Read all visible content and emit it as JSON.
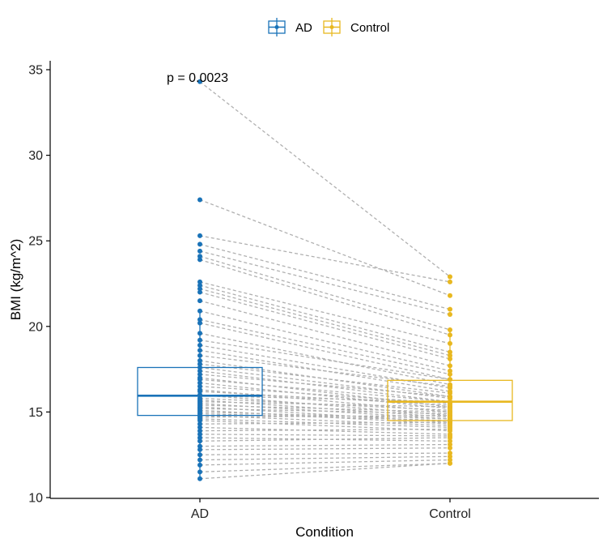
{
  "chart_data": {
    "type": "box_paired",
    "title": "",
    "xlabel": "Condition",
    "ylabel": "BMI (kg/m^2)",
    "ylim": [
      10,
      35.5
    ],
    "yticks": [
      10,
      15,
      20,
      25,
      30,
      35
    ],
    "categories": [
      "AD",
      "Control"
    ],
    "colors": {
      "AD": "#1a73b8",
      "Control": "#e8b820",
      "pair_line": "#b0b0b0"
    },
    "legend": {
      "position": "top",
      "entries": [
        "AD",
        "Control"
      ]
    },
    "annotation": "p = 0.0023",
    "boxes": [
      {
        "group": "AD",
        "q1": 14.8,
        "median": 15.95,
        "q3": 17.6,
        "whisker_low": 11.1,
        "whisker_high": 20.9
      },
      {
        "group": "Control",
        "q1": 14.5,
        "median": 15.6,
        "q3": 16.85,
        "whisker_low": 12.0,
        "whisker_high": 19.9
      }
    ],
    "pairs": [
      [
        34.3,
        22.9
      ],
      [
        27.4,
        21.8
      ],
      [
        25.3,
        22.6
      ],
      [
        24.8,
        21.0
      ],
      [
        24.4,
        20.7
      ],
      [
        24.1,
        19.8
      ],
      [
        23.9,
        19.5
      ],
      [
        22.6,
        19.0
      ],
      [
        22.4,
        18.5
      ],
      [
        22.2,
        18.3
      ],
      [
        22.0,
        18.1
      ],
      [
        21.5,
        17.7
      ],
      [
        20.9,
        17.4
      ],
      [
        20.4,
        17.2
      ],
      [
        20.2,
        16.9
      ],
      [
        19.6,
        16.6
      ],
      [
        19.2,
        16.9
      ],
      [
        18.9,
        16.4
      ],
      [
        18.6,
        16.2
      ],
      [
        18.3,
        16.5
      ],
      [
        18.0,
        15.9
      ],
      [
        17.8,
        16.1
      ],
      [
        17.6,
        15.8
      ],
      [
        17.4,
        15.6
      ],
      [
        17.2,
        15.9
      ],
      [
        17.0,
        15.3
      ],
      [
        16.9,
        15.6
      ],
      [
        16.7,
        15.2
      ],
      [
        16.5,
        15.5
      ],
      [
        16.3,
        15.0
      ],
      [
        16.2,
        15.4
      ],
      [
        16.0,
        14.8
      ],
      [
        15.95,
        15.6
      ],
      [
        15.8,
        15.1
      ],
      [
        15.7,
        14.7
      ],
      [
        15.6,
        15.3
      ],
      [
        15.5,
        14.6
      ],
      [
        15.4,
        15.0
      ],
      [
        15.3,
        14.4
      ],
      [
        15.2,
        14.9
      ],
      [
        15.1,
        14.3
      ],
      [
        15.0,
        14.6
      ],
      [
        14.9,
        14.5
      ],
      [
        14.8,
        14.2
      ],
      [
        14.7,
        14.8
      ],
      [
        14.6,
        14.1
      ],
      [
        14.5,
        13.9
      ],
      [
        14.3,
        14.4
      ],
      [
        14.1,
        13.7
      ],
      [
        13.9,
        14.0
      ],
      [
        13.7,
        13.6
      ],
      [
        13.5,
        13.3
      ],
      [
        13.3,
        13.5
      ],
      [
        13.0,
        13.1
      ],
      [
        12.8,
        12.9
      ],
      [
        12.5,
        12.6
      ],
      [
        12.2,
        12.4
      ],
      [
        11.9,
        12.2
      ],
      [
        11.5,
        12.0
      ],
      [
        11.1,
        12.0
      ]
    ]
  }
}
